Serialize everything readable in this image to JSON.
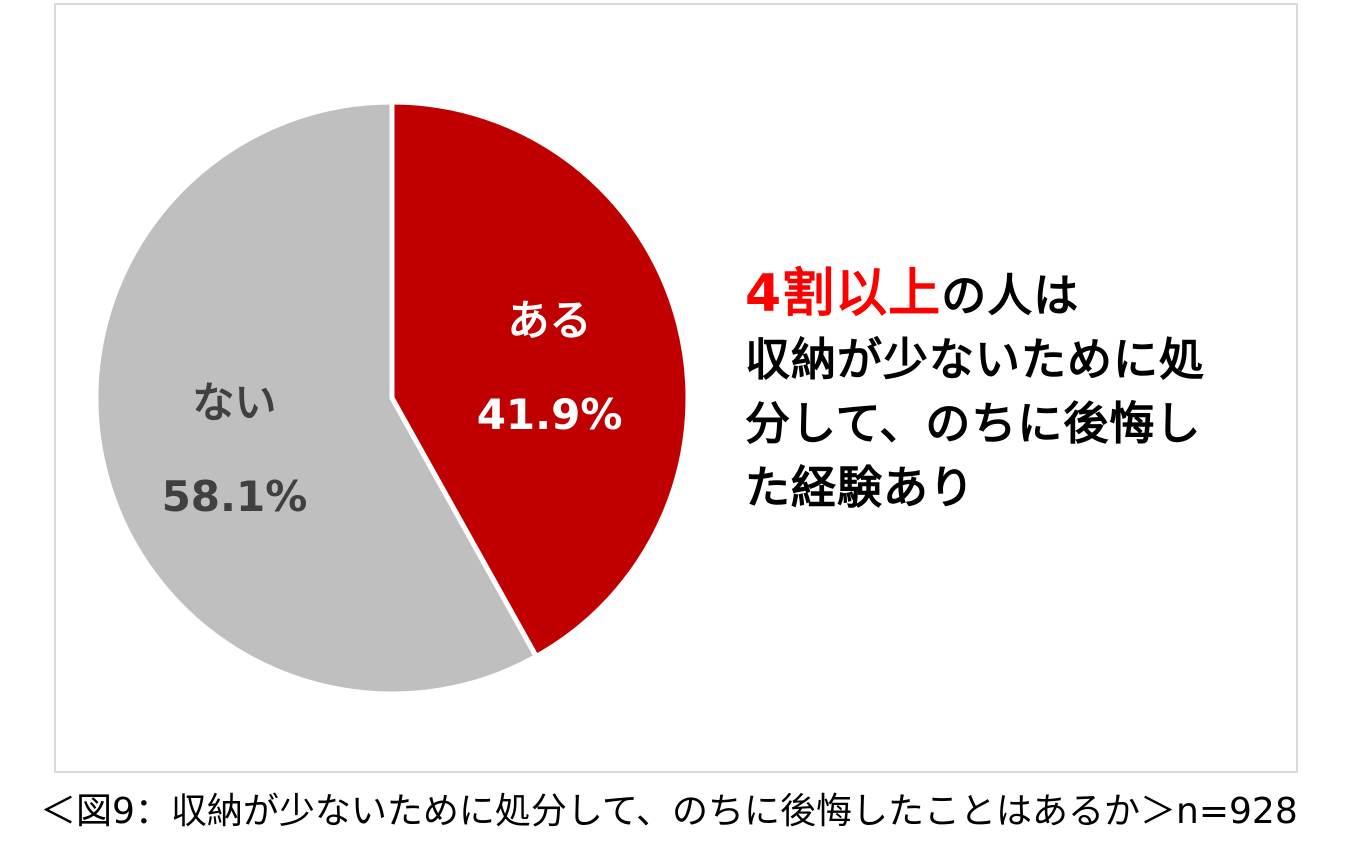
{
  "chart_data": {
    "type": "pie",
    "slices": [
      {
        "label": "ある",
        "value": 41.9,
        "value_label": "41.9%",
        "color": "#c00000",
        "text_color": "#ffffff"
      },
      {
        "label": "ない",
        "value": 58.1,
        "value_label": "58.1%",
        "color": "#bfbfbf",
        "text_color": "#404040"
      }
    ],
    "start_angle_deg": 0,
    "direction": "clockwise",
    "legend": "none"
  },
  "annotation": {
    "highlight": "4割以上",
    "highlight_color": "#ff0000",
    "line1_rest": "の人は",
    "line2": "収納が少ないために処",
    "line3": "分して、のちに後悔し",
    "line4": "た経験あり"
  },
  "caption": "＜図9：収納が少ないために処分して、のちに後悔したことはあるか＞n=928"
}
